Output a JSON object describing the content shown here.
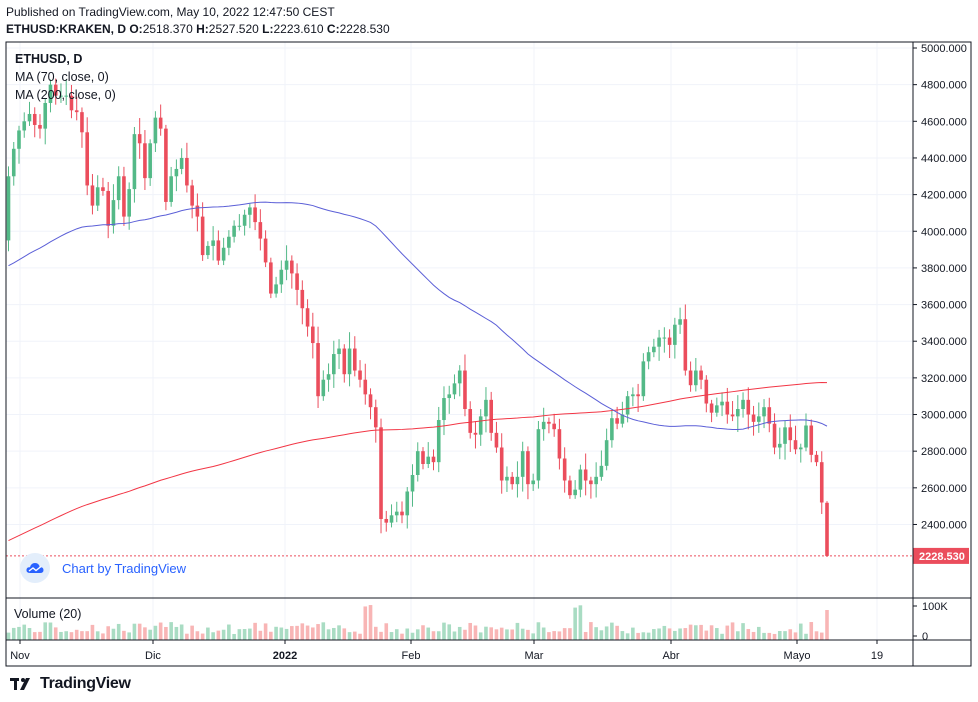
{
  "header": {
    "published": "Published on TradingView.com, May 10, 2022 12:47:50 CEST",
    "symbol": "ETHUSD:KRAKEN, D",
    "ohlc": {
      "O": "O:",
      "O_val": "2518.370",
      "H": "H:",
      "H_val": "2527.520",
      "L": "L:",
      "L_val": "2223.610",
      "C": "C:",
      "C_val": "2228.530"
    }
  },
  "legend": {
    "symbol": "ETHUSD, D",
    "ma70": "MA (70, close, 0)",
    "ma200": "MA (200, close, 0)",
    "volume": "Volume (20)"
  },
  "branding": {
    "chart_by": "Chart by TradingView",
    "logo_text": "TradingView",
    "logo_mark": "17"
  },
  "colors": {
    "up": "#26a69a",
    "up_fill": "#53b987",
    "down": "#ef5350",
    "down_fill": "#eb4d5c",
    "ma70": "#5b5fd7",
    "ma200": "#f23645",
    "last_price_bg": "#eb4d5c",
    "grid": "#f0f3fa",
    "border": "#131722"
  },
  "chart_data": {
    "type": "candlestick",
    "title": "ETHUSD:KRAKEN, D",
    "y_axis": {
      "min": 2100,
      "max": 5000,
      "ticks": [
        "5000.000",
        "4800.000",
        "4600.000",
        "4400.000",
        "4200.000",
        "4000.000",
        "3800.000",
        "3600.000",
        "3400.000",
        "3200.000",
        "3000.000",
        "2800.000",
        "2600.000",
        "2400.000"
      ]
    },
    "x_axis_labels": [
      "Nov",
      "Dic",
      "2022",
      "Feb",
      "Mar",
      "Abr",
      "Mayo",
      "19"
    ],
    "last_price": {
      "value": 2228.53,
      "label": "2228.530"
    },
    "volume_axis": {
      "ticks": [
        "100K",
        "0"
      ]
    },
    "closes": [
      4300,
      4450,
      4550,
      4600,
      4640,
      4580,
      4560,
      4700,
      4800,
      4740,
      4740,
      4740,
      4660,
      4650,
      4540,
      4250,
      4140,
      4240,
      4220,
      4030,
      4170,
      4300,
      4080,
      4230,
      4530,
      4480,
      4290,
      4480,
      4620,
      4560,
      4160,
      4300,
      4340,
      4400,
      4250,
      4140,
      4080,
      3870,
      3920,
      3950,
      3840,
      3910,
      3970,
      4030,
      4030,
      4090,
      4130,
      4050,
      3960,
      3830,
      3660,
      3710,
      3790,
      3840,
      3770,
      3680,
      3580,
      3480,
      3390,
      3100,
      3190,
      3220,
      3330,
      3360,
      3220,
      3360,
      3240,
      3190,
      3110,
      3040,
      2930,
      2430,
      2410,
      2450,
      2470,
      2450,
      2580,
      2670,
      2800,
      2730,
      2770,
      2740,
      2970,
      3090,
      3110,
      3170,
      3240,
      3030,
      2900,
      2890,
      2990,
      3080,
      2900,
      2820,
      2640,
      2660,
      2620,
      2660,
      2800,
      2620,
      2640,
      2920,
      2960,
      2950,
      2920,
      2760,
      2640,
      2560,
      2590,
      2700,
      2640,
      2620,
      2660,
      2720,
      2860,
      2980,
      2950,
      3000,
      3100,
      3110,
      3100,
      3290,
      3340,
      3370,
      3420,
      3420,
      3380,
      3490,
      3520,
      3240,
      3160,
      3240,
      3190,
      3060,
      3010,
      3050,
      3070,
      3000,
      2990,
      3030,
      3080,
      3000,
      2960,
      2990,
      3040,
      2950,
      2820,
      2840,
      2930,
      2860,
      2810,
      2820,
      2940,
      2780,
      2740,
      2520,
      2228.53
    ],
    "volume_series": "daily volume, 0-100K scale"
  }
}
